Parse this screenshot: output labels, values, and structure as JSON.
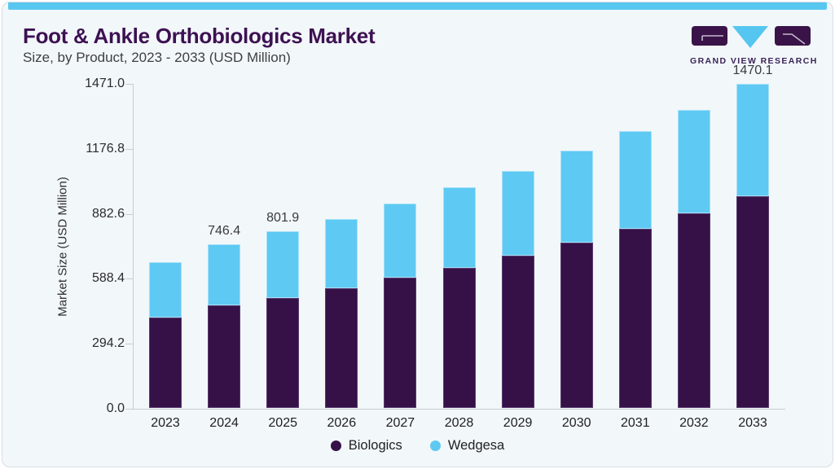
{
  "header": {
    "title": "Foot & Ankle Orthobiologics Market",
    "subtitle": "Size, by Product, 2023 - 2033 (USD Million)"
  },
  "logo": {
    "text": "GRAND VIEW RESEARCH"
  },
  "colors": {
    "accent_strip": "#58c7f0",
    "biologics": "#351148",
    "wedgesa": "#5ec9f3",
    "title_text": "#3d1152",
    "axis_line": "#c9ced4"
  },
  "chart_data": {
    "type": "bar",
    "stacked": true,
    "title": "Foot & Ankle Orthobiologics Market Size, by Product, 2023 - 2033 (USD Million)",
    "categories": [
      "2023",
      "2024",
      "2025",
      "2026",
      "2027",
      "2028",
      "2029",
      "2030",
      "2031",
      "2032",
      "2033"
    ],
    "series": [
      {
        "name": "Biologics",
        "color": "#351148",
        "values": [
          413.6,
          468.0,
          503.0,
          545.7,
          592.3,
          639.0,
          694.4,
          750.4,
          814.9,
          886.3,
          962.5
        ]
      },
      {
        "name": "Wedgesa",
        "color": "#5ec9f3",
        "values": [
          249.8,
          278.4,
          298.9,
          314.6,
          335.2,
          362.3,
          382.2,
          416.7,
          441.6,
          468.4,
          507.6
        ]
      }
    ],
    "totals": [
      663.4,
      746.4,
      801.9,
      860.3,
      927.5,
      1001.3,
      1076.6,
      1167.1,
      1256.5,
      1354.7,
      1470.1
    ],
    "value_labels": [
      "",
      "746.4",
      "801.9",
      "",
      "",
      "",
      "",
      "",
      "",
      "",
      "1470.1"
    ],
    "xlabel": "",
    "ylabel": "Market Size (USD Million)",
    "ylim": [
      0,
      1471
    ],
    "yticks": [
      0.0,
      294.2,
      588.4,
      882.6,
      1176.8,
      1471.0
    ],
    "ytick_labels": [
      "0.0",
      "294.2",
      "588.4",
      "882.6",
      "1176.8",
      "1471.0"
    ],
    "grid": false,
    "legend_position": "bottom"
  }
}
